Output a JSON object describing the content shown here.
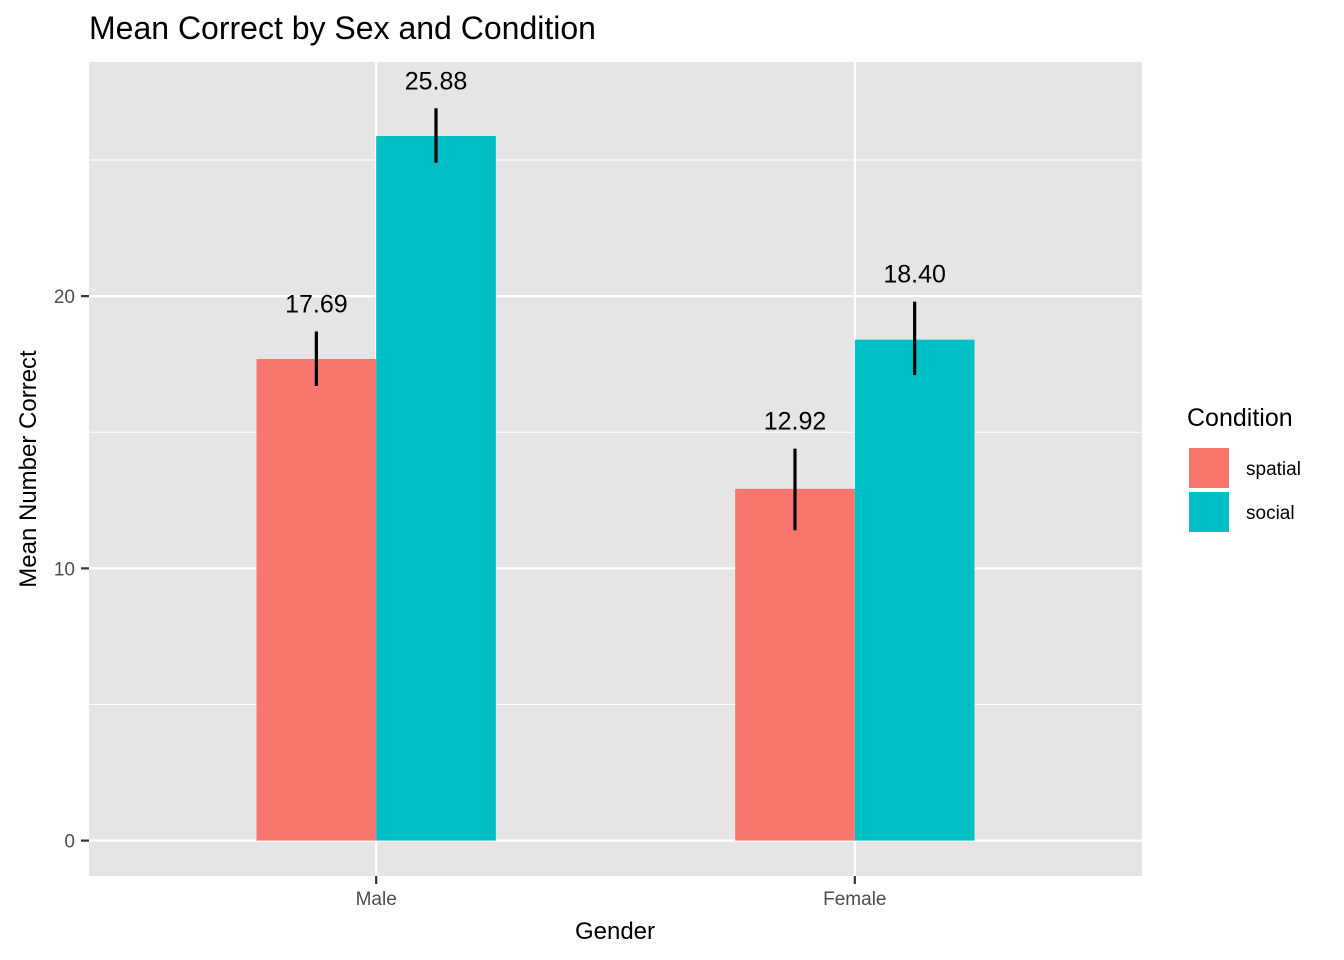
{
  "chart_data": {
    "type": "bar",
    "title": "Mean Correct by Sex and Condition",
    "xlabel": "Gender",
    "ylabel": "Mean Number Correct",
    "categories": [
      "Male",
      "Female"
    ],
    "series": [
      {
        "name": "spatial",
        "color": "#F8766D",
        "values": [
          17.69,
          12.92
        ],
        "error_low": [
          16.7,
          11.4
        ],
        "error_high": [
          18.7,
          14.4
        ]
      },
      {
        "name": "social",
        "color": "#00BFC4",
        "values": [
          25.88,
          18.4
        ],
        "error_low": [
          24.9,
          17.1
        ],
        "error_high": [
          26.9,
          19.8
        ]
      }
    ],
    "data_labels": [
      [
        "17.69",
        "12.92"
      ],
      [
        "25.88",
        "18.40"
      ]
    ],
    "yticks": [
      0,
      10,
      20
    ],
    "ylim": [
      -1.3,
      28.6
    ],
    "grid": true,
    "legend": {
      "title": "Condition",
      "position": "right"
    },
    "panel_background": "#E5E5E5",
    "grid_color": "#FFFFFF"
  }
}
